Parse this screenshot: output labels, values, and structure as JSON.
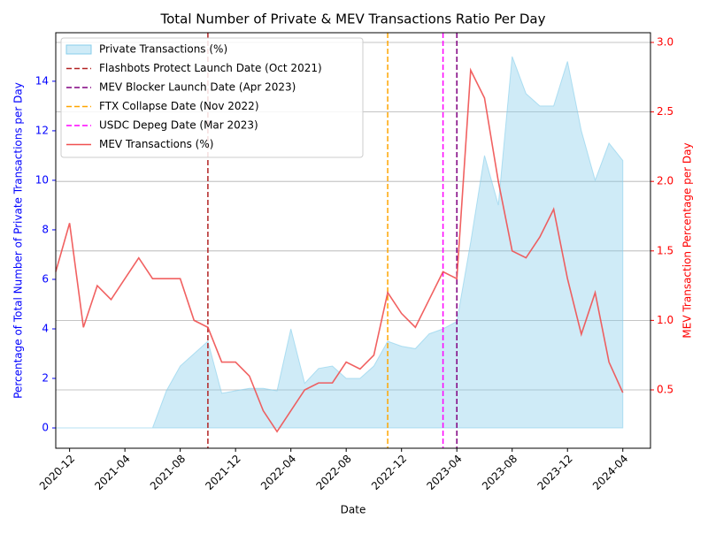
{
  "chart_data": {
    "type": "area-line",
    "title": "Total Number of Private & MEV Transactions Ratio Per Day",
    "xlabel": "Date",
    "ylabel": "Percentage of Total Number of Private Transactions per Day",
    "y2label": "MEV Transaction Percentage per Day",
    "x": [
      "2020-11",
      "2020-12",
      "2021-01",
      "2021-02",
      "2021-03",
      "2021-04",
      "2021-05",
      "2021-06",
      "2021-07",
      "2021-08",
      "2021-09",
      "2021-10",
      "2021-11",
      "2021-12",
      "2022-01",
      "2022-02",
      "2022-03",
      "2022-04",
      "2022-05",
      "2022-06",
      "2022-07",
      "2022-08",
      "2022-09",
      "2022-10",
      "2022-11",
      "2022-12",
      "2023-01",
      "2023-02",
      "2023-03",
      "2023-04",
      "2023-05",
      "2023-06",
      "2023-07",
      "2023-08",
      "2023-09",
      "2023-10",
      "2023-11",
      "2023-12",
      "2024-01",
      "2024-02",
      "2024-03",
      "2024-04"
    ],
    "series": [
      {
        "name": "Private Transactions (%)",
        "color": "#87ceeb",
        "kind": "area",
        "values": [
          0,
          0,
          0,
          0,
          0,
          0,
          0,
          0,
          1.5,
          2.5,
          3.0,
          3.5,
          1.4,
          1.5,
          1.6,
          1.6,
          1.5,
          4.0,
          1.8,
          2.4,
          2.5,
          2.0,
          2.0,
          2.5,
          3.5,
          3.3,
          3.2,
          3.8,
          4.0,
          4.3,
          7.5,
          11.0,
          9.0,
          15.0,
          13.5,
          13.0,
          13.0,
          14.8,
          12.0,
          10.0,
          11.5,
          10.8
        ]
      },
      {
        "name": "MEV Transactions (%)",
        "color": "#f05050",
        "kind": "line",
        "axis": "y2",
        "values": [
          1.35,
          1.7,
          0.95,
          1.25,
          1.15,
          1.3,
          1.45,
          1.3,
          1.3,
          1.3,
          1.0,
          0.95,
          0.7,
          0.7,
          0.6,
          0.35,
          0.2,
          0.35,
          0.5,
          0.55,
          0.55,
          0.7,
          0.65,
          0.75,
          1.2,
          1.05,
          0.95,
          1.15,
          1.35,
          1.3,
          2.8,
          2.6,
          2.0,
          1.5,
          1.45,
          1.6,
          1.8,
          1.3,
          0.9,
          1.2,
          0.7,
          0.48
        ]
      }
    ],
    "events": [
      {
        "name": "Flashbots Protect Launch Date (Oct 2021)",
        "x": "2021-10",
        "color": "#b22222"
      },
      {
        "name": "MEV Blocker Launch Date (Apr 2023)",
        "x": "2023-04",
        "color": "#800080"
      },
      {
        "name": "FTX Collapse Date (Nov 2022)",
        "x": "2022-11",
        "color": "#ffa500"
      },
      {
        "name": "USDC Depeg Date (Mar 2023)",
        "x": "2023-03",
        "color": "#ff00ff"
      }
    ],
    "xlim": [
      "2020-11",
      "2024-06"
    ],
    "xticks": [
      "2020-12",
      "2021-04",
      "2021-08",
      "2021-12",
      "2022-04",
      "2022-08",
      "2022-12",
      "2023-04",
      "2023-08",
      "2023-12",
      "2024-04"
    ],
    "ylim": [
      -0.82,
      15.96
    ],
    "yticks": [
      0,
      2,
      4,
      6,
      8,
      10,
      12,
      14
    ],
    "y2lim": [
      0.08,
      3.07
    ],
    "y2ticks": [
      0.5,
      1.0,
      1.5,
      2.0,
      2.5,
      3.0
    ],
    "y2ticks_labels": [
      "0.5",
      "1.0",
      "1.5",
      "2.0",
      "2.5",
      "3.0"
    ],
    "grid": "y2",
    "legend": "upper left"
  }
}
